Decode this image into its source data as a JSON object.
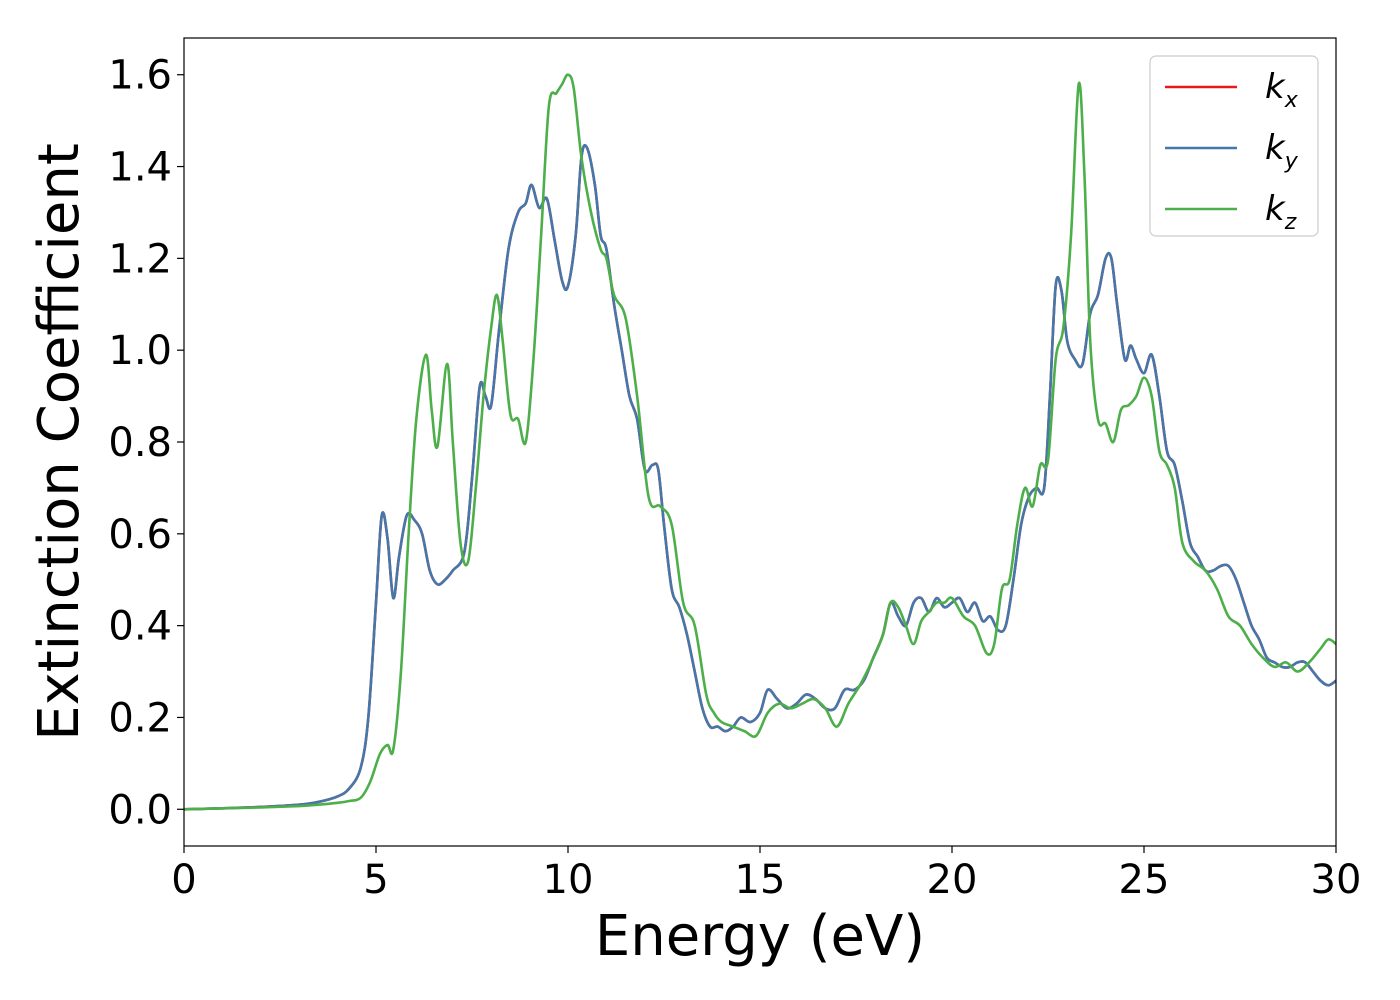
{
  "chart_data": {
    "type": "line",
    "title": "",
    "xlabel": "Energy (eV)",
    "ylabel": "Extinction Coefficient",
    "xlim": [
      0,
      30
    ],
    "ylim": [
      -0.08,
      1.68
    ],
    "xticks": [
      0,
      5,
      10,
      15,
      20,
      25,
      30
    ],
    "xtick_labels": [
      "0",
      "5",
      "10",
      "15",
      "20",
      "25",
      "30"
    ],
    "yticks": [
      0.0,
      0.2,
      0.4,
      0.6,
      0.8,
      1.0,
      1.2,
      1.4,
      1.6
    ],
    "ytick_labels": [
      "0.0",
      "0.2",
      "0.4",
      "0.6",
      "0.8",
      "1.0",
      "1.2",
      "1.4",
      "1.6"
    ],
    "grid": false,
    "legend_position": "top-right",
    "series": [
      {
        "name": "k",
        "subscript": "x",
        "color": "#e41a1c",
        "x": [
          0,
          1,
          2,
          3,
          3.5,
          4,
          4.3,
          4.6,
          4.8,
          5.0,
          5.15,
          5.3,
          5.45,
          5.6,
          5.8,
          6.0,
          6.2,
          6.4,
          6.6,
          6.8,
          7.0,
          7.3,
          7.5,
          7.7,
          7.85,
          8.0,
          8.2,
          8.45,
          8.7,
          8.9,
          9.05,
          9.25,
          9.45,
          9.65,
          9.85,
          10.0,
          10.2,
          10.35,
          10.5,
          10.7,
          10.85,
          11.0,
          11.2,
          11.4,
          11.6,
          11.8,
          12.0,
          12.2,
          12.35,
          12.5,
          12.7,
          12.9,
          13.1,
          13.3,
          13.5,
          13.7,
          13.9,
          14.1,
          14.3,
          14.5,
          14.75,
          15.0,
          15.2,
          15.45,
          15.7,
          15.95,
          16.2,
          16.45,
          16.7,
          16.95,
          17.2,
          17.45,
          17.7,
          17.95,
          18.2,
          18.4,
          18.6,
          18.8,
          19.0,
          19.2,
          19.4,
          19.6,
          19.8,
          20.0,
          20.2,
          20.4,
          20.6,
          20.8,
          21.0,
          21.2,
          21.4,
          21.6,
          21.8,
          22.0,
          22.2,
          22.4,
          22.55,
          22.7,
          22.85,
          23.0,
          23.2,
          23.4,
          23.6,
          23.8,
          24.0,
          24.15,
          24.3,
          24.5,
          24.65,
          24.8,
          25.0,
          25.2,
          25.4,
          25.6,
          25.8,
          26.0,
          26.2,
          26.4,
          26.6,
          26.8,
          27.0,
          27.2,
          27.4,
          27.6,
          27.8,
          28.0,
          28.2,
          28.4,
          28.6,
          28.8,
          29.0,
          29.2,
          29.4,
          29.6,
          29.8,
          30.0
        ],
        "y": [
          0.0,
          0.002,
          0.005,
          0.01,
          0.016,
          0.028,
          0.045,
          0.09,
          0.2,
          0.45,
          0.64,
          0.59,
          0.46,
          0.55,
          0.64,
          0.63,
          0.6,
          0.52,
          0.49,
          0.5,
          0.52,
          0.56,
          0.72,
          0.92,
          0.9,
          0.88,
          1.04,
          1.22,
          1.3,
          1.32,
          1.36,
          1.31,
          1.33,
          1.24,
          1.15,
          1.14,
          1.25,
          1.42,
          1.44,
          1.36,
          1.25,
          1.22,
          1.1,
          1.0,
          0.9,
          0.85,
          0.74,
          0.75,
          0.74,
          0.62,
          0.48,
          0.44,
          0.38,
          0.3,
          0.22,
          0.18,
          0.18,
          0.17,
          0.18,
          0.2,
          0.19,
          0.21,
          0.26,
          0.24,
          0.22,
          0.23,
          0.25,
          0.24,
          0.22,
          0.22,
          0.26,
          0.26,
          0.28,
          0.33,
          0.38,
          0.45,
          0.42,
          0.4,
          0.45,
          0.46,
          0.43,
          0.46,
          0.44,
          0.45,
          0.46,
          0.43,
          0.45,
          0.41,
          0.42,
          0.39,
          0.4,
          0.5,
          0.62,
          0.68,
          0.7,
          0.7,
          0.9,
          1.14,
          1.13,
          1.02,
          0.98,
          0.97,
          1.08,
          1.12,
          1.2,
          1.2,
          1.1,
          0.98,
          1.01,
          0.98,
          0.95,
          0.99,
          0.9,
          0.78,
          0.75,
          0.67,
          0.58,
          0.55,
          0.52,
          0.52,
          0.53,
          0.53,
          0.5,
          0.45,
          0.4,
          0.37,
          0.33,
          0.32,
          0.31,
          0.31,
          0.32,
          0.32,
          0.3,
          0.28,
          0.27,
          0.28
        ]
      },
      {
        "name": "k",
        "subscript": "y",
        "color": "#4477aa",
        "x": [
          0,
          1,
          2,
          3,
          3.5,
          4,
          4.3,
          4.6,
          4.8,
          5.0,
          5.15,
          5.3,
          5.45,
          5.6,
          5.8,
          6.0,
          6.2,
          6.4,
          6.6,
          6.8,
          7.0,
          7.3,
          7.5,
          7.7,
          7.85,
          8.0,
          8.2,
          8.45,
          8.7,
          8.9,
          9.05,
          9.25,
          9.45,
          9.65,
          9.85,
          10.0,
          10.2,
          10.35,
          10.5,
          10.7,
          10.85,
          11.0,
          11.2,
          11.4,
          11.6,
          11.8,
          12.0,
          12.2,
          12.35,
          12.5,
          12.7,
          12.9,
          13.1,
          13.3,
          13.5,
          13.7,
          13.9,
          14.1,
          14.3,
          14.5,
          14.75,
          15.0,
          15.2,
          15.45,
          15.7,
          15.95,
          16.2,
          16.45,
          16.7,
          16.95,
          17.2,
          17.45,
          17.7,
          17.95,
          18.2,
          18.4,
          18.6,
          18.8,
          19.0,
          19.2,
          19.4,
          19.6,
          19.8,
          20.0,
          20.2,
          20.4,
          20.6,
          20.8,
          21.0,
          21.2,
          21.4,
          21.6,
          21.8,
          22.0,
          22.2,
          22.4,
          22.55,
          22.7,
          22.85,
          23.0,
          23.2,
          23.4,
          23.6,
          23.8,
          24.0,
          24.15,
          24.3,
          24.5,
          24.65,
          24.8,
          25.0,
          25.2,
          25.4,
          25.6,
          25.8,
          26.0,
          26.2,
          26.4,
          26.6,
          26.8,
          27.0,
          27.2,
          27.4,
          27.6,
          27.8,
          28.0,
          28.2,
          28.4,
          28.6,
          28.8,
          29.0,
          29.2,
          29.4,
          29.6,
          29.8,
          30.0
        ],
        "y": [
          0.0,
          0.002,
          0.005,
          0.01,
          0.016,
          0.028,
          0.045,
          0.09,
          0.2,
          0.45,
          0.64,
          0.59,
          0.46,
          0.55,
          0.64,
          0.63,
          0.6,
          0.52,
          0.49,
          0.5,
          0.52,
          0.56,
          0.72,
          0.92,
          0.9,
          0.88,
          1.04,
          1.22,
          1.3,
          1.32,
          1.36,
          1.31,
          1.33,
          1.24,
          1.15,
          1.14,
          1.25,
          1.42,
          1.44,
          1.36,
          1.25,
          1.22,
          1.1,
          1.0,
          0.9,
          0.85,
          0.74,
          0.75,
          0.74,
          0.62,
          0.48,
          0.44,
          0.38,
          0.3,
          0.22,
          0.18,
          0.18,
          0.17,
          0.18,
          0.2,
          0.19,
          0.21,
          0.26,
          0.24,
          0.22,
          0.23,
          0.25,
          0.24,
          0.22,
          0.22,
          0.26,
          0.26,
          0.28,
          0.33,
          0.38,
          0.45,
          0.42,
          0.4,
          0.45,
          0.46,
          0.43,
          0.46,
          0.44,
          0.45,
          0.46,
          0.43,
          0.45,
          0.41,
          0.42,
          0.39,
          0.4,
          0.5,
          0.62,
          0.68,
          0.7,
          0.7,
          0.9,
          1.14,
          1.13,
          1.02,
          0.98,
          0.97,
          1.08,
          1.12,
          1.2,
          1.2,
          1.1,
          0.98,
          1.01,
          0.98,
          0.95,
          0.99,
          0.9,
          0.78,
          0.75,
          0.67,
          0.58,
          0.55,
          0.52,
          0.52,
          0.53,
          0.53,
          0.5,
          0.45,
          0.4,
          0.37,
          0.33,
          0.32,
          0.31,
          0.31,
          0.32,
          0.32,
          0.3,
          0.28,
          0.27,
          0.28
        ]
      },
      {
        "name": "k",
        "subscript": "z",
        "color": "#4daf4a",
        "x": [
          0,
          1,
          2,
          3,
          3.5,
          4,
          4.3,
          4.6,
          4.85,
          5.1,
          5.3,
          5.45,
          5.65,
          5.85,
          6.05,
          6.3,
          6.45,
          6.6,
          6.85,
          7.0,
          7.2,
          7.4,
          7.6,
          7.8,
          8.0,
          8.15,
          8.3,
          8.5,
          8.7,
          8.9,
          9.1,
          9.3,
          9.5,
          9.7,
          9.85,
          10.0,
          10.15,
          10.35,
          10.6,
          10.85,
          11.0,
          11.2,
          11.5,
          11.8,
          12.1,
          12.4,
          12.7,
          13.0,
          13.3,
          13.6,
          13.8,
          14.0,
          14.3,
          14.6,
          14.9,
          15.2,
          15.5,
          15.8,
          16.1,
          16.4,
          16.7,
          17.0,
          17.3,
          17.6,
          17.9,
          18.2,
          18.4,
          18.6,
          18.8,
          19.0,
          19.2,
          19.4,
          19.6,
          19.8,
          20.0,
          20.3,
          20.6,
          20.9,
          21.1,
          21.3,
          21.5,
          21.7,
          21.9,
          22.1,
          22.3,
          22.5,
          22.7,
          22.9,
          23.1,
          23.3,
          23.45,
          23.6,
          23.8,
          24.0,
          24.2,
          24.4,
          24.6,
          24.8,
          25.0,
          25.2,
          25.4,
          25.6,
          25.8,
          26.0,
          26.3,
          26.6,
          26.9,
          27.2,
          27.5,
          27.8,
          28.1,
          28.4,
          28.7,
          29.0,
          29.3,
          29.6,
          29.8,
          30.0
        ],
        "y": [
          0.0,
          0.002,
          0.004,
          0.007,
          0.01,
          0.014,
          0.018,
          0.025,
          0.06,
          0.12,
          0.14,
          0.13,
          0.3,
          0.6,
          0.85,
          0.99,
          0.87,
          0.79,
          0.97,
          0.8,
          0.58,
          0.54,
          0.7,
          0.9,
          1.05,
          1.12,
          1.02,
          0.86,
          0.85,
          0.8,
          0.98,
          1.25,
          1.53,
          1.56,
          1.58,
          1.6,
          1.57,
          1.42,
          1.3,
          1.22,
          1.2,
          1.12,
          1.07,
          0.9,
          0.68,
          0.66,
          0.62,
          0.45,
          0.4,
          0.25,
          0.21,
          0.19,
          0.18,
          0.17,
          0.16,
          0.21,
          0.23,
          0.22,
          0.23,
          0.24,
          0.22,
          0.18,
          0.23,
          0.27,
          0.32,
          0.38,
          0.45,
          0.44,
          0.4,
          0.36,
          0.41,
          0.43,
          0.45,
          0.45,
          0.46,
          0.42,
          0.4,
          0.34,
          0.36,
          0.48,
          0.5,
          0.62,
          0.7,
          0.66,
          0.75,
          0.76,
          0.98,
          1.05,
          1.25,
          1.58,
          1.38,
          1.02,
          0.85,
          0.84,
          0.8,
          0.87,
          0.88,
          0.9,
          0.94,
          0.9,
          0.78,
          0.75,
          0.7,
          0.58,
          0.54,
          0.52,
          0.48,
          0.42,
          0.4,
          0.36,
          0.33,
          0.31,
          0.32,
          0.3,
          0.32,
          0.35,
          0.37,
          0.36
        ]
      }
    ]
  }
}
